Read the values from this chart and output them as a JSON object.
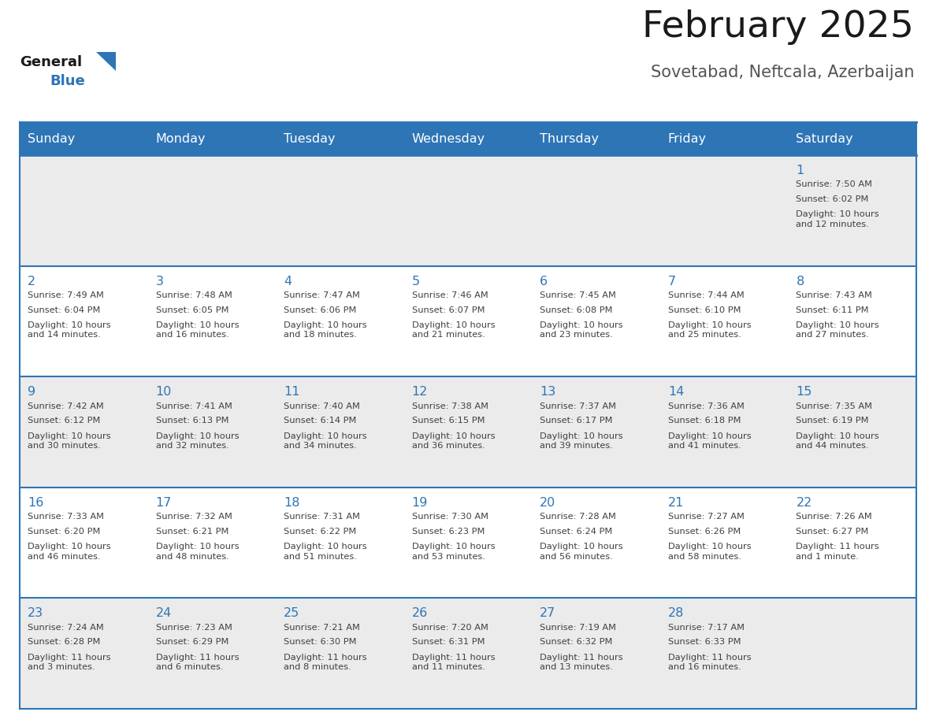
{
  "title": "February 2025",
  "subtitle": "Sovetabad, Neftcala, Azerbaijan",
  "header_bg": "#2E75B6",
  "header_text_color": "#FFFFFF",
  "bg_color": "#FFFFFF",
  "alt_row_bg": "#EBEBEB",
  "cell_text_color": "#404040",
  "day_number_color": "#2E75B6",
  "separator_color": "#2E75B6",
  "header_days": [
    "Sunday",
    "Monday",
    "Tuesday",
    "Wednesday",
    "Thursday",
    "Friday",
    "Saturday"
  ],
  "days": [
    {
      "day": 1,
      "col": 6,
      "row": 0,
      "sunrise": "7:50 AM",
      "sunset": "6:02 PM",
      "daylight": "10 hours\nand 12 minutes."
    },
    {
      "day": 2,
      "col": 0,
      "row": 1,
      "sunrise": "7:49 AM",
      "sunset": "6:04 PM",
      "daylight": "10 hours\nand 14 minutes."
    },
    {
      "day": 3,
      "col": 1,
      "row": 1,
      "sunrise": "7:48 AM",
      "sunset": "6:05 PM",
      "daylight": "10 hours\nand 16 minutes."
    },
    {
      "day": 4,
      "col": 2,
      "row": 1,
      "sunrise": "7:47 AM",
      "sunset": "6:06 PM",
      "daylight": "10 hours\nand 18 minutes."
    },
    {
      "day": 5,
      "col": 3,
      "row": 1,
      "sunrise": "7:46 AM",
      "sunset": "6:07 PM",
      "daylight": "10 hours\nand 21 minutes."
    },
    {
      "day": 6,
      "col": 4,
      "row": 1,
      "sunrise": "7:45 AM",
      "sunset": "6:08 PM",
      "daylight": "10 hours\nand 23 minutes."
    },
    {
      "day": 7,
      "col": 5,
      "row": 1,
      "sunrise": "7:44 AM",
      "sunset": "6:10 PM",
      "daylight": "10 hours\nand 25 minutes."
    },
    {
      "day": 8,
      "col": 6,
      "row": 1,
      "sunrise": "7:43 AM",
      "sunset": "6:11 PM",
      "daylight": "10 hours\nand 27 minutes."
    },
    {
      "day": 9,
      "col": 0,
      "row": 2,
      "sunrise": "7:42 AM",
      "sunset": "6:12 PM",
      "daylight": "10 hours\nand 30 minutes."
    },
    {
      "day": 10,
      "col": 1,
      "row": 2,
      "sunrise": "7:41 AM",
      "sunset": "6:13 PM",
      "daylight": "10 hours\nand 32 minutes."
    },
    {
      "day": 11,
      "col": 2,
      "row": 2,
      "sunrise": "7:40 AM",
      "sunset": "6:14 PM",
      "daylight": "10 hours\nand 34 minutes."
    },
    {
      "day": 12,
      "col": 3,
      "row": 2,
      "sunrise": "7:38 AM",
      "sunset": "6:15 PM",
      "daylight": "10 hours\nand 36 minutes."
    },
    {
      "day": 13,
      "col": 4,
      "row": 2,
      "sunrise": "7:37 AM",
      "sunset": "6:17 PM",
      "daylight": "10 hours\nand 39 minutes."
    },
    {
      "day": 14,
      "col": 5,
      "row": 2,
      "sunrise": "7:36 AM",
      "sunset": "6:18 PM",
      "daylight": "10 hours\nand 41 minutes."
    },
    {
      "day": 15,
      "col": 6,
      "row": 2,
      "sunrise": "7:35 AM",
      "sunset": "6:19 PM",
      "daylight": "10 hours\nand 44 minutes."
    },
    {
      "day": 16,
      "col": 0,
      "row": 3,
      "sunrise": "7:33 AM",
      "sunset": "6:20 PM",
      "daylight": "10 hours\nand 46 minutes."
    },
    {
      "day": 17,
      "col": 1,
      "row": 3,
      "sunrise": "7:32 AM",
      "sunset": "6:21 PM",
      "daylight": "10 hours\nand 48 minutes."
    },
    {
      "day": 18,
      "col": 2,
      "row": 3,
      "sunrise": "7:31 AM",
      "sunset": "6:22 PM",
      "daylight": "10 hours\nand 51 minutes."
    },
    {
      "day": 19,
      "col": 3,
      "row": 3,
      "sunrise": "7:30 AM",
      "sunset": "6:23 PM",
      "daylight": "10 hours\nand 53 minutes."
    },
    {
      "day": 20,
      "col": 4,
      "row": 3,
      "sunrise": "7:28 AM",
      "sunset": "6:24 PM",
      "daylight": "10 hours\nand 56 minutes."
    },
    {
      "day": 21,
      "col": 5,
      "row": 3,
      "sunrise": "7:27 AM",
      "sunset": "6:26 PM",
      "daylight": "10 hours\nand 58 minutes."
    },
    {
      "day": 22,
      "col": 6,
      "row": 3,
      "sunrise": "7:26 AM",
      "sunset": "6:27 PM",
      "daylight": "11 hours\nand 1 minute."
    },
    {
      "day": 23,
      "col": 0,
      "row": 4,
      "sunrise": "7:24 AM",
      "sunset": "6:28 PM",
      "daylight": "11 hours\nand 3 minutes."
    },
    {
      "day": 24,
      "col": 1,
      "row": 4,
      "sunrise": "7:23 AM",
      "sunset": "6:29 PM",
      "daylight": "11 hours\nand 6 minutes."
    },
    {
      "day": 25,
      "col": 2,
      "row": 4,
      "sunrise": "7:21 AM",
      "sunset": "6:30 PM",
      "daylight": "11 hours\nand 8 minutes."
    },
    {
      "day": 26,
      "col": 3,
      "row": 4,
      "sunrise": "7:20 AM",
      "sunset": "6:31 PM",
      "daylight": "11 hours\nand 11 minutes."
    },
    {
      "day": 27,
      "col": 4,
      "row": 4,
      "sunrise": "7:19 AM",
      "sunset": "6:32 PM",
      "daylight": "11 hours\nand 13 minutes."
    },
    {
      "day": 28,
      "col": 5,
      "row": 4,
      "sunrise": "7:17 AM",
      "sunset": "6:33 PM",
      "daylight": "11 hours\nand 16 minutes."
    }
  ]
}
